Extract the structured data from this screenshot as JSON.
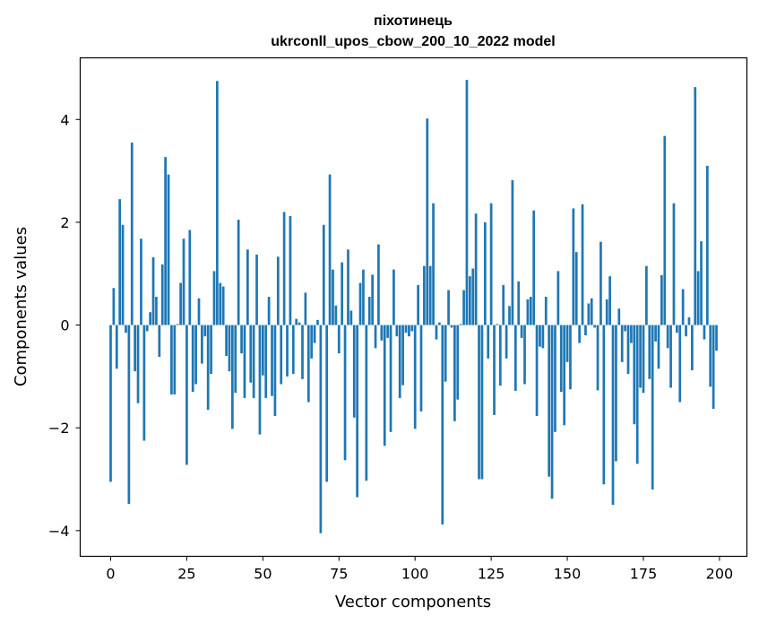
{
  "chart_data": {
    "type": "bar",
    "title": "піхотинець",
    "subtitle": "ukrconll_upos_cbow_200_10_2022 model",
    "xlabel": "Vector components",
    "ylabel": "Components values",
    "xlim": [
      -10,
      209
    ],
    "ylim": [
      -4.5,
      5.2
    ],
    "xticks": [
      0,
      25,
      50,
      75,
      100,
      125,
      150,
      175,
      200
    ],
    "xtick_labels": [
      "0",
      "25",
      "50",
      "75",
      "100",
      "125",
      "150",
      "175",
      "200"
    ],
    "yticks": [
      -4,
      -2,
      0,
      2,
      4
    ],
    "ytick_labels": [
      "−4",
      "−2",
      "0",
      "2",
      "4"
    ],
    "grid": false,
    "bar_color": "#1f77b4",
    "values": [
      -3.05,
      0.72,
      -0.85,
      2.45,
      1.95,
      -0.15,
      -3.48,
      3.55,
      -0.9,
      -1.52,
      1.68,
      -2.25,
      -0.12,
      0.25,
      1.32,
      0.55,
      -0.62,
      1.18,
      3.27,
      2.93,
      -1.35,
      -1.35,
      0.02,
      0.82,
      1.68,
      -2.72,
      1.85,
      -1.3,
      -1.15,
      0.52,
      -0.75,
      -0.22,
      -1.65,
      -0.95,
      1.05,
      4.75,
      0.82,
      0.75,
      -0.6,
      -0.9,
      -2.02,
      -1.32,
      2.05,
      -0.55,
      -1.42,
      1.47,
      -1.12,
      -1.42,
      1.37,
      -2.13,
      -0.98,
      -1.42,
      0.55,
      -1.38,
      -1.77,
      1.33,
      -1.15,
      2.2,
      -1.0,
      2.12,
      -0.95,
      0.12,
      0.05,
      -1.05,
      0.63,
      -1.5,
      -0.65,
      -0.35,
      0.1,
      -4.05,
      1.95,
      -3.05,
      2.93,
      1.08,
      0.38,
      -0.55,
      1.22,
      -2.63,
      1.47,
      0.28,
      -1.8,
      -3.35,
      0.82,
      1.08,
      -3.03,
      0.55,
      0.98,
      -0.45,
      1.57,
      -0.3,
      -2.35,
      -0.25,
      -2.08,
      1.08,
      -0.22,
      -1.42,
      -1.17,
      -0.15,
      -0.22,
      -0.12,
      -2.02,
      0.78,
      -1.68,
      1.15,
      4.02,
      1.15,
      2.37,
      -0.28,
      0.05,
      -3.88,
      -1.1,
      0.68,
      -0.05,
      -1.87,
      -1.45,
      0.02,
      0.68,
      4.77,
      0.95,
      1.1,
      2.17,
      -3.0,
      -3.0,
      2.0,
      -0.65,
      2.37,
      -1.75,
      0.02,
      -1.18,
      0.78,
      -0.65,
      0.37,
      2.82,
      -1.28,
      0.85,
      -0.25,
      -1.15,
      0.5,
      0.55,
      2.23,
      -1.77,
      -0.42,
      -0.45,
      0.55,
      -2.95,
      -3.38,
      -2.08,
      1.05,
      -1.3,
      -1.95,
      -0.72,
      -1.25,
      2.27,
      1.42,
      -0.35,
      2.35,
      -0.2,
      0.42,
      0.52,
      -0.05,
      -1.27,
      1.62,
      -3.1,
      0.5,
      0.95,
      -3.5,
      -2.65,
      0.32,
      -0.72,
      -0.12,
      -0.95,
      -0.35,
      -1.93,
      -2.7,
      -1.22,
      -1.32,
      1.15,
      -1.05,
      -3.2,
      -0.32,
      -0.85,
      0.97,
      3.68,
      -0.45,
      -1.22,
      2.37,
      -0.15,
      -1.5,
      0.7,
      -0.22,
      0.15,
      -0.88,
      4.63,
      1.05,
      1.63,
      -0.28,
      3.1,
      -1.2,
      -1.63,
      -0.5
    ]
  }
}
